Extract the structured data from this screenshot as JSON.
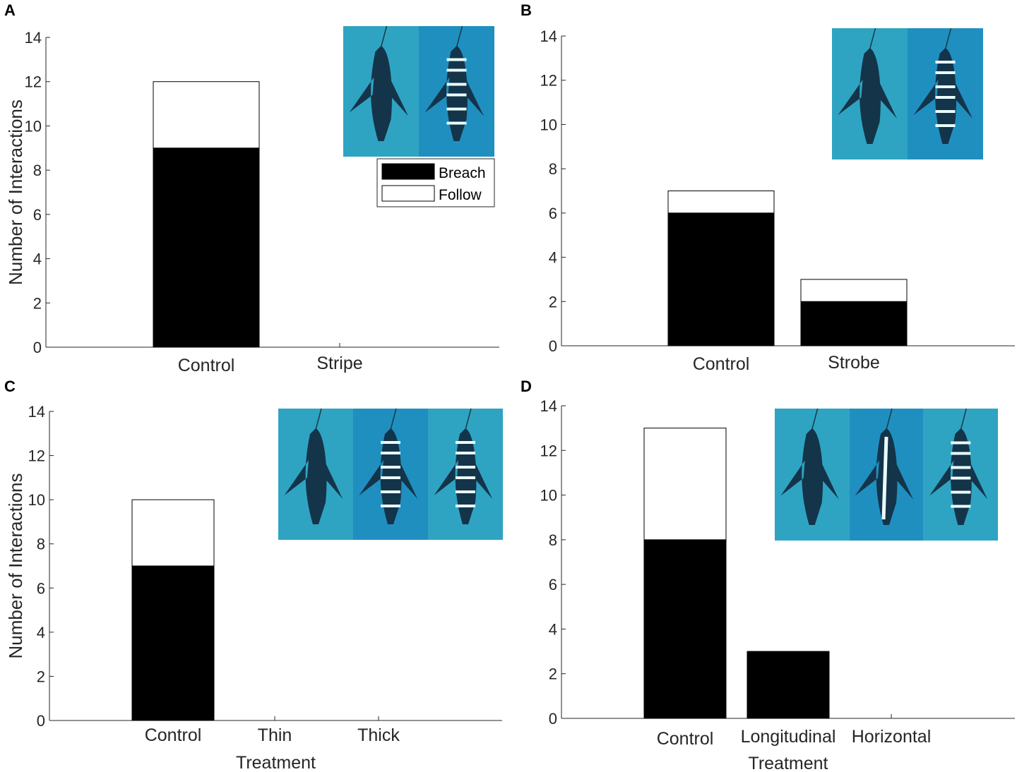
{
  "colors": {
    "breach": "#000000",
    "follow": "#ffffff",
    "axis": "#262626",
    "photo_a": "#2ea4c2",
    "photo_b": "#1f8fc0"
  },
  "legend": {
    "breach": "Breach",
    "follow": "Follow",
    "placement": "top-right (panel A)"
  },
  "chart_data": [
    {
      "panel": "A",
      "type": "bar",
      "stacked": true,
      "ylabel": "Number of Interactions",
      "xlabel": "",
      "ylim": [
        0,
        14
      ],
      "yticks": [
        0,
        2,
        4,
        6,
        8,
        10,
        12,
        14
      ],
      "categories": [
        "Control",
        "Stripe"
      ],
      "series": [
        {
          "name": "Breach",
          "values": [
            9,
            0
          ]
        },
        {
          "name": "Follow",
          "values": [
            3,
            0
          ]
        }
      ]
    },
    {
      "panel": "B",
      "type": "bar",
      "stacked": true,
      "ylabel": "",
      "xlabel": "",
      "ylim": [
        0,
        14
      ],
      "yticks": [
        0,
        2,
        4,
        6,
        8,
        10,
        12,
        14
      ],
      "categories": [
        "Control",
        "Strobe"
      ],
      "series": [
        {
          "name": "Breach",
          "values": [
            6,
            2
          ]
        },
        {
          "name": "Follow",
          "values": [
            1,
            1
          ]
        }
      ]
    },
    {
      "panel": "C",
      "type": "bar",
      "stacked": true,
      "ylabel": "Number of Interactions",
      "xlabel": "Treatment",
      "ylim": [
        0,
        14
      ],
      "yticks": [
        0,
        2,
        4,
        6,
        8,
        10,
        12,
        14
      ],
      "categories": [
        "Control",
        "Thin",
        "Thick"
      ],
      "series": [
        {
          "name": "Breach",
          "values": [
            7,
            0,
            0
          ]
        },
        {
          "name": "Follow",
          "values": [
            3,
            0,
            0
          ]
        }
      ]
    },
    {
      "panel": "D",
      "type": "bar",
      "stacked": true,
      "ylabel": "",
      "xlabel": "Treatment",
      "ylim": [
        0,
        14
      ],
      "yticks": [
        0,
        2,
        4,
        6,
        8,
        10,
        12,
        14
      ],
      "categories": [
        "Control",
        "Longitudinal",
        "Horizontal"
      ],
      "series": [
        {
          "name": "Breach",
          "values": [
            8,
            3,
            0
          ]
        },
        {
          "name": "Follow",
          "values": [
            5,
            0,
            0
          ]
        }
      ]
    }
  ]
}
